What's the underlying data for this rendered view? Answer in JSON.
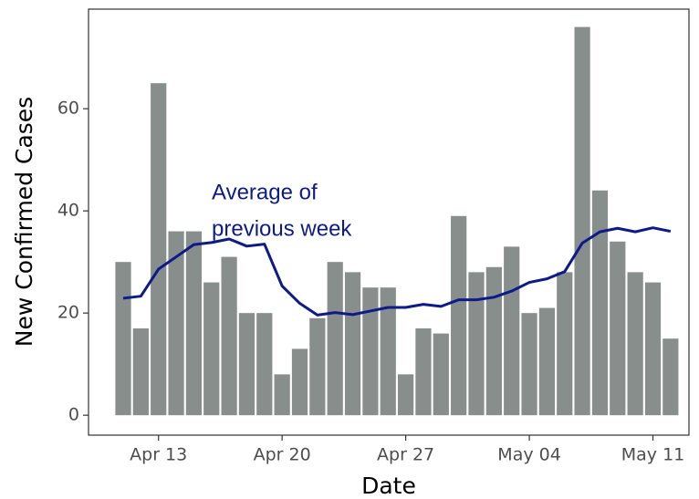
{
  "chart_data": {
    "type": "bar",
    "categories": [
      "Apr 11",
      "Apr 12",
      "Apr 13",
      "Apr 14",
      "Apr 15",
      "Apr 16",
      "Apr 17",
      "Apr 18",
      "Apr 19",
      "Apr 20",
      "Apr 21",
      "Apr 22",
      "Apr 23",
      "Apr 24",
      "Apr 25",
      "Apr 26",
      "Apr 27",
      "Apr 28",
      "Apr 29",
      "Apr 30",
      "May 01",
      "May 02",
      "May 03",
      "May 04",
      "May 05",
      "May 06",
      "May 07",
      "May 08",
      "May 09",
      "May 10",
      "May 11",
      "May 12"
    ],
    "series": [
      {
        "name": "New Confirmed Cases",
        "type": "bar",
        "color": "#878e8c",
        "values": [
          30,
          17,
          65,
          36,
          36,
          26,
          31,
          20,
          20,
          8,
          13,
          19,
          30,
          28,
          25,
          25,
          8,
          17,
          16,
          39,
          28,
          29,
          33,
          20,
          21,
          28,
          76,
          44,
          34,
          28,
          26,
          15
        ]
      },
      {
        "name": "Average of previous week",
        "type": "line",
        "color": "#0c1a8c",
        "values": [
          22.9,
          23.3,
          28.6,
          31,
          33.4,
          33.8,
          34.5,
          33.1,
          33.5,
          25.3,
          21.9,
          19.6,
          20.1,
          19.7,
          20.4,
          21.1,
          21.1,
          21.7,
          21.3,
          22.6,
          22.6,
          23.1,
          24.3,
          26,
          26.7,
          28.1,
          33.7,
          35.9,
          36.6,
          35.9,
          36.7,
          36
        ]
      }
    ],
    "annotation": [
      "Average of",
      "previous week"
    ],
    "xlabel": "Date",
    "ylabel": "New Confirmed Cases",
    "xticks": [
      "Apr 13",
      "Apr 20",
      "Apr 27",
      "May 04",
      "May 11"
    ],
    "ylim": [
      -3.9,
      79.5
    ],
    "yticks": [
      0,
      20,
      40,
      60
    ]
  }
}
